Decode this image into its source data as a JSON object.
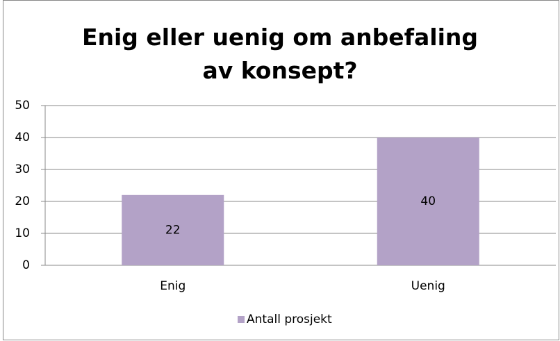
{
  "chart_data": {
    "type": "bar",
    "title": "Enig eller uenig om anbefaling av konsept?",
    "categories": [
      "Enig",
      "Uenig"
    ],
    "series": [
      {
        "name": "Antall prosjekt",
        "color": "#b3a2c7",
        "values": [
          22,
          40
        ]
      }
    ],
    "ylim": [
      0,
      50
    ],
    "yticks": [
      0,
      10,
      20,
      30,
      40,
      50
    ],
    "grid": true,
    "legend": "bottom"
  }
}
